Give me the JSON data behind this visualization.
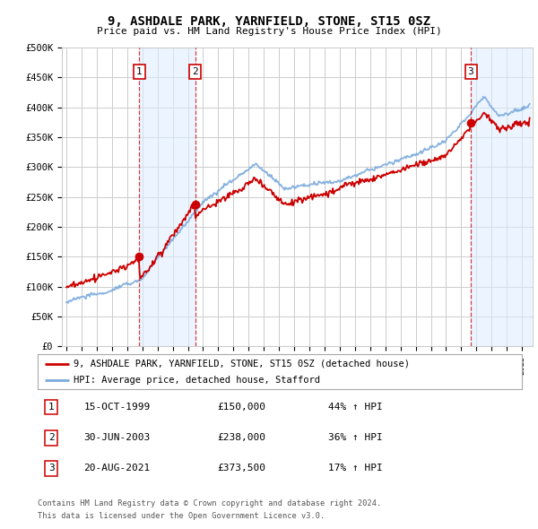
{
  "title": "9, ASHDALE PARK, YARNFIELD, STONE, ST15 0SZ",
  "subtitle": "Price paid vs. HM Land Registry's House Price Index (HPI)",
  "ylim": [
    0,
    500000
  ],
  "yticks": [
    0,
    50000,
    100000,
    150000,
    200000,
    250000,
    300000,
    350000,
    400000,
    450000,
    500000
  ],
  "ytick_labels": [
    "£0",
    "£50K",
    "£100K",
    "£150K",
    "£200K",
    "£250K",
    "£300K",
    "£350K",
    "£400K",
    "£450K",
    "£500K"
  ],
  "sale_color": "#cc0000",
  "hpi_color": "#7aaadd",
  "shade_color": "#ddeeff",
  "grid_color": "#cccccc",
  "bg_color": "#ffffff",
  "transactions": [
    {
      "date_num": 1999.79,
      "price": 150000,
      "label": "1"
    },
    {
      "date_num": 2003.49,
      "price": 238000,
      "label": "2"
    },
    {
      "date_num": 2021.63,
      "price": 373500,
      "label": "3"
    }
  ],
  "transaction_table": [
    {
      "num": "1",
      "date": "15-OCT-1999",
      "price": "£150,000",
      "pct": "44% ↑ HPI"
    },
    {
      "num": "2",
      "date": "30-JUN-2003",
      "price": "£238,000",
      "pct": "36% ↑ HPI"
    },
    {
      "num": "3",
      "date": "20-AUG-2021",
      "price": "£373,500",
      "pct": "17% ↑ HPI"
    }
  ],
  "legend_line1": "9, ASHDALE PARK, YARNFIELD, STONE, ST15 0SZ (detached house)",
  "legend_line2": "HPI: Average price, detached house, Stafford",
  "footer1": "Contains HM Land Registry data © Crown copyright and database right 2024.",
  "footer2": "This data is licensed under the Open Government Licence v3.0."
}
